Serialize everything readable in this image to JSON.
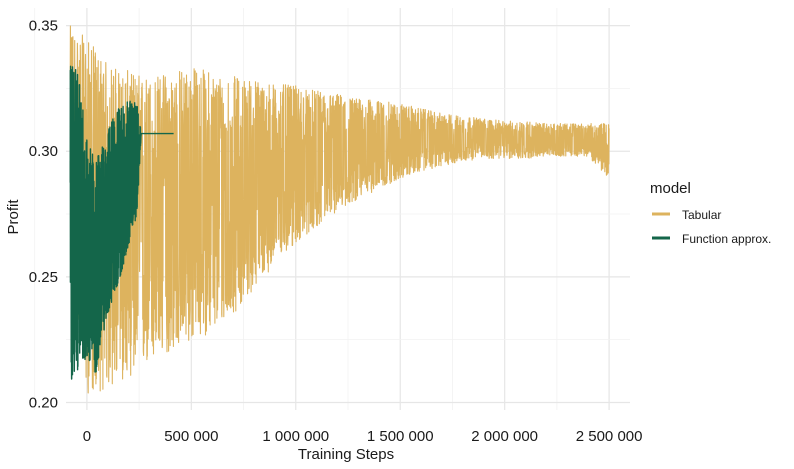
{
  "chart_data": {
    "type": "line",
    "xlabel": "Training Steps",
    "ylabel": "Profit",
    "xlim": [
      -100000,
      2600000
    ],
    "ylim": [
      0.197,
      0.357
    ],
    "x_ticks": [
      0,
      500000,
      1000000,
      1500000,
      2000000,
      2500000
    ],
    "x_tick_labels": [
      "0",
      "500 000",
      "1 000 000",
      "1 500 000",
      "2 000 000",
      "2 500 000"
    ],
    "y_ticks": [
      0.2,
      0.25,
      0.3,
      0.35
    ],
    "y_tick_labels": [
      "0.20",
      "0.25",
      "0.30",
      "0.35"
    ],
    "grid": true,
    "legend": {
      "title": "model",
      "position": "right"
    },
    "series": [
      {
        "name": "Tabular",
        "color": "#DDB35E",
        "x_range": [
          -80000,
          2500000
        ],
        "envelope": {
          "x": [
            -80000,
            0,
            100000,
            200000,
            300000,
            400000,
            500000,
            600000,
            700000,
            800000,
            900000,
            1000000,
            1100000,
            1200000,
            1300000,
            1400000,
            1500000,
            1600000,
            1700000,
            1800000,
            1900000,
            2000000,
            2100000,
            2200000,
            2300000,
            2400000,
            2500000
          ],
          "upper": [
            0.35,
            0.345,
            0.335,
            0.332,
            0.33,
            0.332,
            0.334,
            0.332,
            0.33,
            0.329,
            0.327,
            0.326,
            0.324,
            0.323,
            0.321,
            0.32,
            0.319,
            0.317,
            0.315,
            0.314,
            0.313,
            0.312,
            0.312,
            0.311,
            0.311,
            0.311,
            0.311
          ],
          "lower": [
            0.26,
            0.203,
            0.205,
            0.21,
            0.215,
            0.22,
            0.224,
            0.228,
            0.235,
            0.245,
            0.255,
            0.263,
            0.27,
            0.276,
            0.281,
            0.285,
            0.289,
            0.292,
            0.294,
            0.296,
            0.297,
            0.297,
            0.297,
            0.298,
            0.298,
            0.298,
            0.289
          ]
        }
      },
      {
        "name": "Function approx.",
        "color": "#14664A",
        "x_range": [
          -80000,
          415000
        ],
        "envelope": {
          "x": [
            -80000,
            -40000,
            0,
            40000,
            80000,
            120000,
            160000,
            200000,
            240000,
            260000
          ],
          "upper": [
            0.338,
            0.33,
            0.305,
            0.296,
            0.303,
            0.313,
            0.318,
            0.32,
            0.322,
            0.307
          ],
          "lower": [
            0.205,
            0.214,
            0.218,
            0.21,
            0.228,
            0.24,
            0.25,
            0.262,
            0.275,
            0.307
          ]
        },
        "converged_value": 0.307,
        "converged_x_range": [
          260000,
          415000
        ]
      }
    ]
  }
}
